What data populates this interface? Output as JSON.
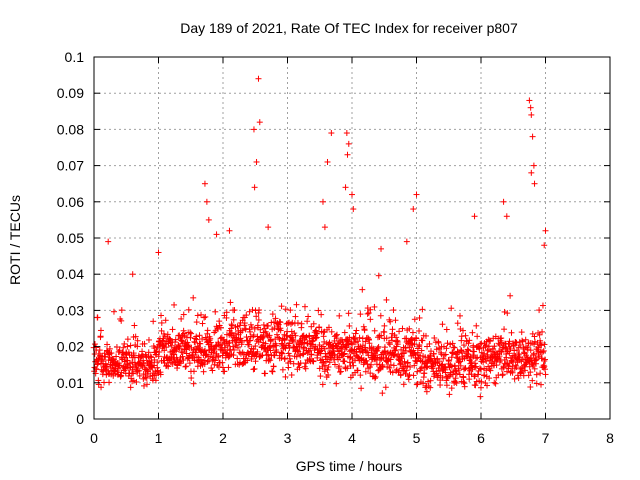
{
  "chart_data": {
    "type": "scatter",
    "title": "Day 189 of 2021, Rate Of TEC Index for receiver p807",
    "xlabel": "GPS time / hours",
    "ylabel": "ROTI / TECUs",
    "xlim": [
      0,
      8
    ],
    "ylim": [
      0,
      0.1
    ],
    "xticks": [
      "0",
      "1",
      "2",
      "3",
      "4",
      "5",
      "6",
      "7",
      "8"
    ],
    "yticks": [
      "0",
      "0.01",
      "0.02",
      "0.03",
      "0.04",
      "0.05",
      "0.06",
      "0.07",
      "0.08",
      "0.09",
      "0.1"
    ],
    "grid": true,
    "marker": "plus",
    "color": "#ff0000",
    "x_range_of_data": [
      0,
      7.0
    ],
    "series": [
      {
        "name": "ROTI",
        "points": [
          [
            2.55,
            0.094
          ],
          [
            2.57,
            0.082
          ],
          [
            2.48,
            0.08
          ],
          [
            2.52,
            0.071
          ],
          [
            2.49,
            0.064
          ],
          [
            3.68,
            0.079
          ],
          [
            3.62,
            0.071
          ],
          [
            3.92,
            0.079
          ],
          [
            3.95,
            0.076
          ],
          [
            3.93,
            0.073
          ],
          [
            3.9,
            0.064
          ],
          [
            4.0,
            0.062
          ],
          [
            4.02,
            0.058
          ],
          [
            5.0,
            0.062
          ],
          [
            4.95,
            0.058
          ],
          [
            6.75,
            0.088
          ],
          [
            6.77,
            0.086
          ],
          [
            6.78,
            0.084
          ],
          [
            6.8,
            0.078
          ],
          [
            6.82,
            0.07
          ],
          [
            6.78,
            0.068
          ],
          [
            6.83,
            0.065
          ],
          [
            1.72,
            0.065
          ],
          [
            1.75,
            0.06
          ],
          [
            1.78,
            0.055
          ],
          [
            0.22,
            0.049
          ],
          [
            1.0,
            0.046
          ],
          [
            1.9,
            0.051
          ],
          [
            2.1,
            0.052
          ],
          [
            2.7,
            0.053
          ],
          [
            3.55,
            0.06
          ],
          [
            3.58,
            0.053
          ],
          [
            6.35,
            0.06
          ],
          [
            6.4,
            0.056
          ],
          [
            5.9,
            0.056
          ],
          [
            7.0,
            0.052
          ],
          [
            6.98,
            0.048
          ],
          [
            4.85,
            0.049
          ],
          [
            4.45,
            0.047
          ],
          [
            0.6,
            0.04
          ]
        ],
        "band_estimates": [
          {
            "x_from": 0.0,
            "x_to": 1.0,
            "core_low": 0.006,
            "core_high": 0.024
          },
          {
            "x_from": 1.0,
            "x_to": 2.0,
            "core_low": 0.007,
            "core_high": 0.03
          },
          {
            "x_from": 2.0,
            "x_to": 3.5,
            "core_low": 0.008,
            "core_high": 0.033
          },
          {
            "x_from": 3.5,
            "x_to": 5.0,
            "core_low": 0.006,
            "core_high": 0.03
          },
          {
            "x_from": 5.0,
            "x_to": 6.0,
            "core_low": 0.004,
            "core_high": 0.027
          },
          {
            "x_from": 6.0,
            "x_to": 7.0,
            "core_low": 0.006,
            "core_high": 0.028
          }
        ]
      }
    ]
  }
}
